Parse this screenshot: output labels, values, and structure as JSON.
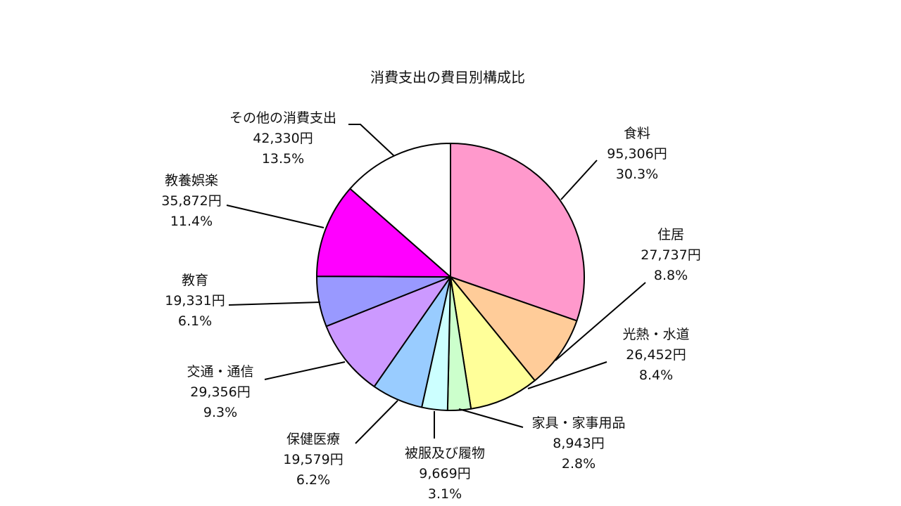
{
  "chart_data": {
    "type": "pie",
    "title": "消費支出の費目別構成比",
    "start": "12 o'clock, clockwise",
    "slices": [
      {
        "name": "食料",
        "amount": "95,306円",
        "value": 30.3,
        "percent": "30.3%",
        "color": "#FF99CC"
      },
      {
        "name": "住居",
        "amount": "27,737円",
        "value": 8.8,
        "percent": "8.8%",
        "color": "#FFCC99"
      },
      {
        "name": "光熱・水道",
        "amount": "26,452円",
        "value": 8.4,
        "percent": "8.4%",
        "color": "#FFFF99"
      },
      {
        "name": "家具・家事用品",
        "amount": "8,943円",
        "value": 2.8,
        "percent": "2.8%",
        "color": "#CCFFCC"
      },
      {
        "name": "被服及び履物",
        "amount": "9,669円",
        "value": 3.1,
        "percent": "3.1%",
        "color": "#CCFFFF"
      },
      {
        "name": "保健医療",
        "amount": "19,579円",
        "value": 6.2,
        "percent": "6.2%",
        "color": "#99CCFF"
      },
      {
        "name": "交通・通信",
        "amount": "29,356円",
        "value": 9.3,
        "percent": "9.3%",
        "color": "#CC99FF"
      },
      {
        "name": "教育",
        "amount": "19,331円",
        "value": 6.1,
        "percent": "6.1%",
        "color": "#9999FF"
      },
      {
        "name": "教養娯楽",
        "amount": "35,872円",
        "value": 11.4,
        "percent": "11.4%",
        "color": "#FF00FF"
      },
      {
        "name": "その他の消費支出",
        "amount": "42,330円",
        "value": 13.5,
        "percent": "13.5%",
        "color": "#FFFFFF"
      }
    ]
  }
}
